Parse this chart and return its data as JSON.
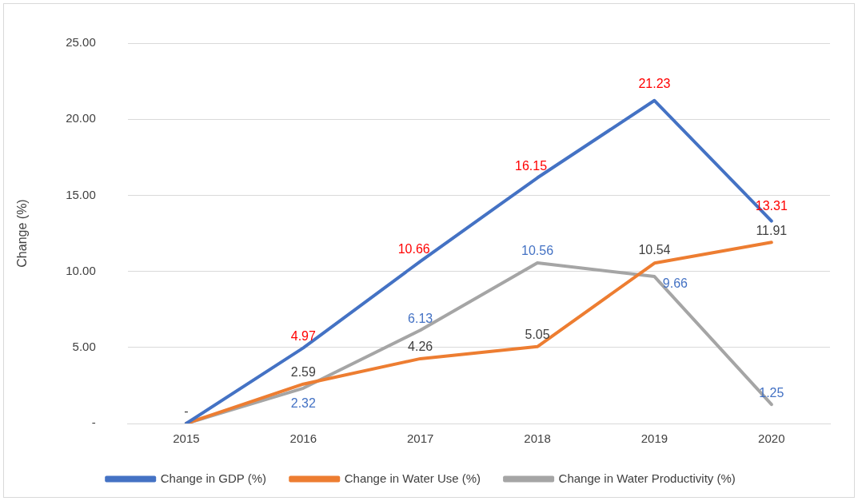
{
  "chart_data": {
    "type": "line",
    "ylabel": "Change (%)",
    "categories": [
      "2015",
      "2016",
      "2017",
      "2018",
      "2019",
      "2020"
    ],
    "series": [
      {
        "name": "Change in GDP (%)",
        "color": "#4472c4",
        "values": [
          0,
          4.97,
          10.66,
          16.15,
          21.23,
          13.31
        ],
        "value_labels": [
          null,
          "4.97",
          "10.66",
          "16.15",
          "21.23",
          "13.31"
        ]
      },
      {
        "name": "Change in Water Use (%)",
        "color": "#ed7d31",
        "values": [
          0,
          2.59,
          4.26,
          5.05,
          10.54,
          11.91
        ],
        "value_labels": [
          "-",
          "2.59",
          "4.26",
          "5.05",
          "10.54",
          "11.91"
        ]
      },
      {
        "name": "Change in Water Productivity (%)",
        "color": "#a5a5a5",
        "values": [
          0,
          2.32,
          6.13,
          10.56,
          9.66,
          1.25
        ],
        "value_labels": [
          null,
          "2.32",
          "6.13",
          "10.56",
          "9.66",
          "1.25"
        ]
      }
    ],
    "ylim": [
      0,
      25
    ],
    "yticks": [
      {
        "value": 0,
        "label": "-"
      },
      {
        "value": 5,
        "label": "5.00"
      },
      {
        "value": 10,
        "label": "10.00"
      },
      {
        "value": 15,
        "label": "15.00"
      },
      {
        "value": 20,
        "label": "20.00"
      },
      {
        "value": 25,
        "label": "25.00"
      }
    ],
    "grid": "y",
    "legend": "bottom",
    "marker": "none",
    "line_style": "solid"
  }
}
